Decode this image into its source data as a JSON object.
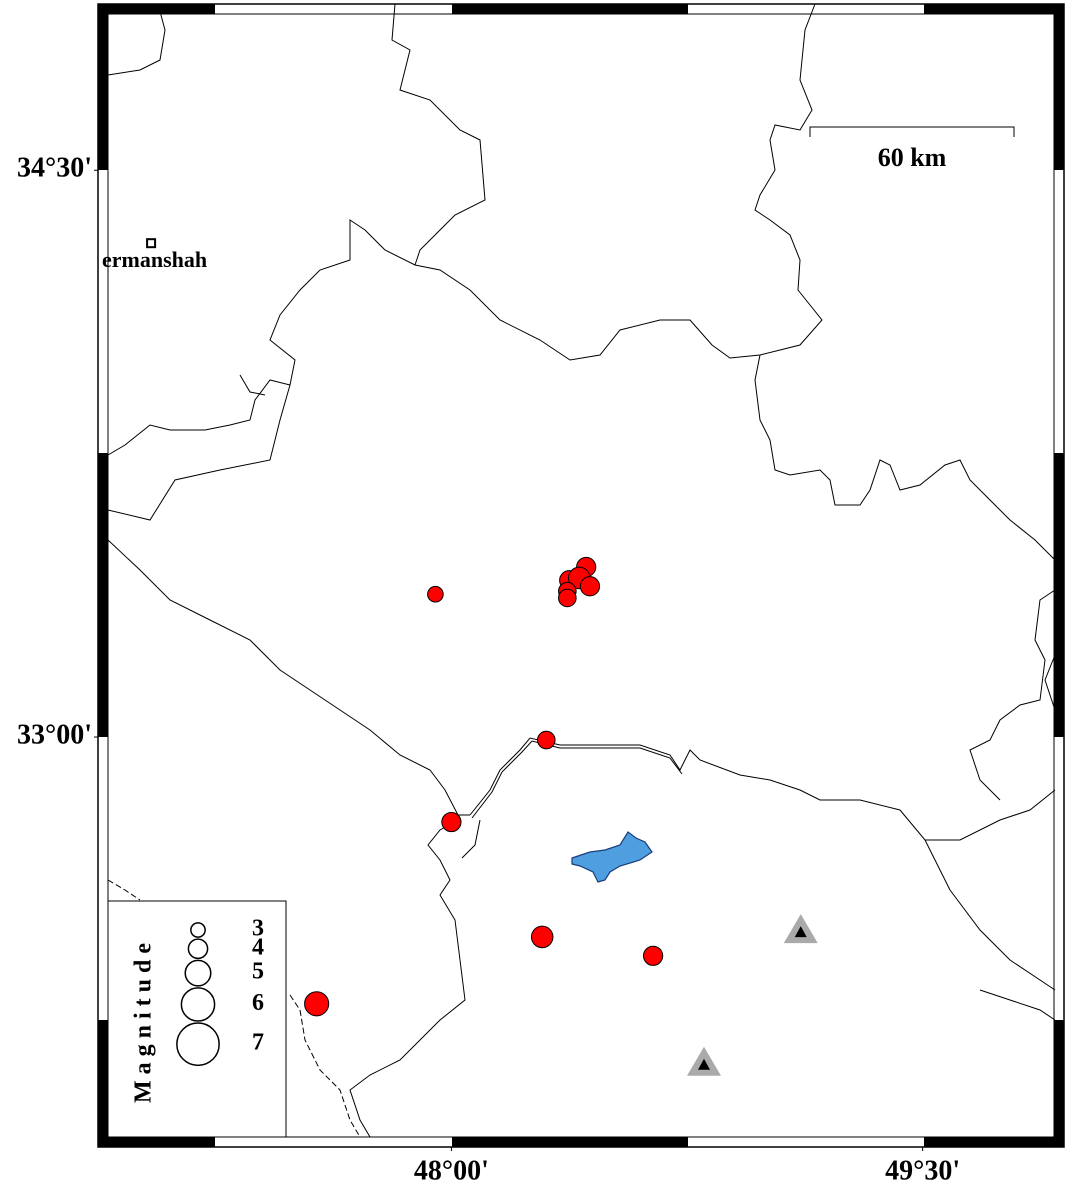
{
  "map": {
    "xlim": [
      46.875,
      49.95
    ],
    "ylim": [
      31.915,
      34.94
    ],
    "xticks": [
      {
        "value": 48,
        "label": "48°00'"
      },
      {
        "value": 49.5,
        "label": "49°30'"
      }
    ],
    "yticks": [
      {
        "value": 33,
        "label": "33°00'"
      },
      {
        "value": 34.5,
        "label": "34°30'"
      }
    ],
    "city": {
      "label": "ermanshah",
      "lon": 47.044,
      "lat": 34.307
    },
    "scale_label": "60 km",
    "event_color": "#ff0000",
    "events": [
      {
        "lon": 47.949,
        "lat": 33.378,
        "mag": 3.3
      },
      {
        "lon": 48.429,
        "lat": 33.45,
        "mag": 4.0
      },
      {
        "lon": 48.375,
        "lat": 33.415,
        "mag": 4.0
      },
      {
        "lon": 48.407,
        "lat": 33.421,
        "mag": 4.4
      },
      {
        "lon": 48.441,
        "lat": 33.399,
        "mag": 4.0
      },
      {
        "lon": 48.369,
        "lat": 33.386,
        "mag": 3.7
      },
      {
        "lon": 48.369,
        "lat": 33.368,
        "mag": 3.7
      },
      {
        "lon": 48.302,
        "lat": 32.992,
        "mag": 3.7
      },
      {
        "lon": 48.0,
        "lat": 32.775,
        "mag": 4.0
      },
      {
        "lon": 48.289,
        "lat": 32.471,
        "mag": 4.4
      },
      {
        "lon": 48.642,
        "lat": 32.421,
        "mag": 4.0
      },
      {
        "lon": 47.571,
        "lat": 32.294,
        "mag": 4.8
      }
    ],
    "stations": [
      {
        "lon": 49.112,
        "lat": 32.481
      },
      {
        "lon": 48.804,
        "lat": 32.13
      }
    ],
    "legend": {
      "title": "Magnitude",
      "sizes": [
        3,
        4,
        5,
        6,
        7
      ]
    }
  }
}
